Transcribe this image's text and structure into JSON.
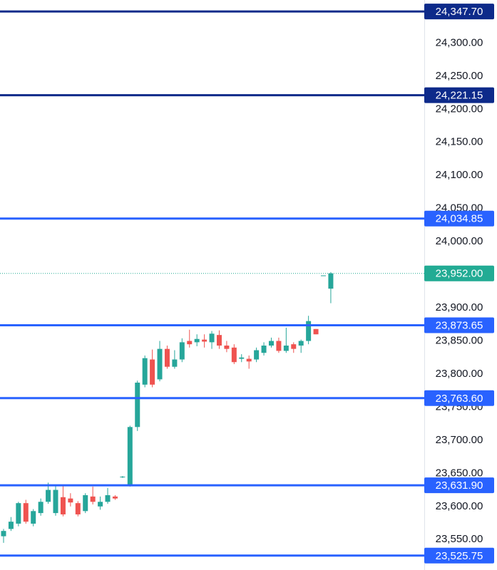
{
  "chart_data": {
    "type": "candlestick",
    "up_color": "#26a69a",
    "down_color": "#ef5350",
    "open": [
      23555,
      23566,
      23574,
      23605,
      23574,
      23590,
      23607,
      23590,
      23614,
      23612,
      23605,
      23593,
      23615,
      23600,
      23607,
      23615,
      23644,
      23633,
      23720,
      23784,
      23822,
      23792,
      23838,
      23811,
      23822,
      23850,
      23848,
      23852,
      23848,
      23859,
      23843,
      23840,
      23823,
      23823,
      23822,
      23832,
      23843,
      23850,
      23835,
      23845,
      23843,
      23850,
      23868,
      23948,
      23929
    ],
    "high": [
      23566,
      23584,
      23607,
      23610,
      23596,
      23612,
      23636,
      23632,
      23631,
      23620,
      23608,
      23620,
      23630,
      23615,
      23628,
      23617,
      23646,
      23722,
      23790,
      23828,
      23837,
      23850,
      23843,
      23836,
      23854,
      23867,
      23860,
      23860,
      23865,
      23866,
      23850,
      23845,
      23830,
      23828,
      23840,
      23848,
      23855,
      23855,
      23870,
      23848,
      23852,
      23888,
      23868,
      23949,
      23954
    ],
    "low": [
      23545,
      23563,
      23570,
      23574,
      23570,
      23586,
      23604,
      23586,
      23585,
      23600,
      23585,
      23590,
      23603,
      23595,
      23604,
      23610,
      23643,
      23630,
      23714,
      23780,
      23780,
      23789,
      23808,
      23808,
      23818,
      23840,
      23842,
      23840,
      23838,
      23838,
      23833,
      23815,
      23818,
      23808,
      23818,
      23828,
      23840,
      23832,
      23832,
      23832,
      23832,
      23845,
      23860,
      23948,
      23907
    ],
    "close": [
      23563,
      23577,
      23605,
      23577,
      23593,
      23607,
      23625,
      23625,
      23588,
      23606,
      23588,
      23617,
      23607,
      23607,
      23617,
      23612,
      23645,
      23720,
      23787,
      23824,
      23784,
      23838,
      23811,
      23822,
      23848,
      23845,
      23853,
      23849,
      23861,
      23843,
      23838,
      23818,
      23825,
      23819,
      23836,
      23843,
      23850,
      23835,
      23843,
      23838,
      23850,
      23880,
      23860,
      23949,
      23952
    ],
    "ylim": [
      23504,
      24365
    ],
    "yticks": [
      {
        "value": 23550,
        "label": "23,550.00"
      },
      {
        "value": 23600,
        "label": "23,600.00"
      },
      {
        "value": 23650,
        "label": "23,650.00"
      },
      {
        "value": 23700,
        "label": "23,700.00"
      },
      {
        "value": 23750,
        "label": "23,750.00"
      },
      {
        "value": 23800,
        "label": "23,800.00"
      },
      {
        "value": 23850,
        "label": "23,850.00"
      },
      {
        "value": 23900,
        "label": "23,900.00"
      },
      {
        "value": 24000,
        "label": "24,000.00"
      },
      {
        "value": 24050,
        "label": "24,050.00"
      },
      {
        "value": 24100,
        "label": "24,100.00"
      },
      {
        "value": 24150,
        "label": "24,150.00"
      },
      {
        "value": 24200,
        "label": "24,200.00"
      },
      {
        "value": 24250,
        "label": "24,250.00"
      },
      {
        "value": 24300,
        "label": "24,300.00"
      }
    ],
    "levels": [
      {
        "value": 24347.7,
        "label": "24,347.70",
        "color": "#0d2a8a"
      },
      {
        "value": 24221.15,
        "label": "24,221.15",
        "color": "#0d2a8a"
      },
      {
        "value": 24034.85,
        "label": "24,034.85",
        "color": "#2962ff"
      },
      {
        "value": 23873.65,
        "label": "23,873.65",
        "color": "#2962ff"
      },
      {
        "value": 23763.6,
        "label": "23,763.60",
        "color": "#2962ff"
      },
      {
        "value": 23631.9,
        "label": "23,631.90",
        "color": "#2962ff"
      },
      {
        "value": 23525.75,
        "label": "23,525.75",
        "color": "#2962ff"
      }
    ],
    "last_price": {
      "value": 23952,
      "label": "23,952.00",
      "color": "#22ab94"
    }
  }
}
